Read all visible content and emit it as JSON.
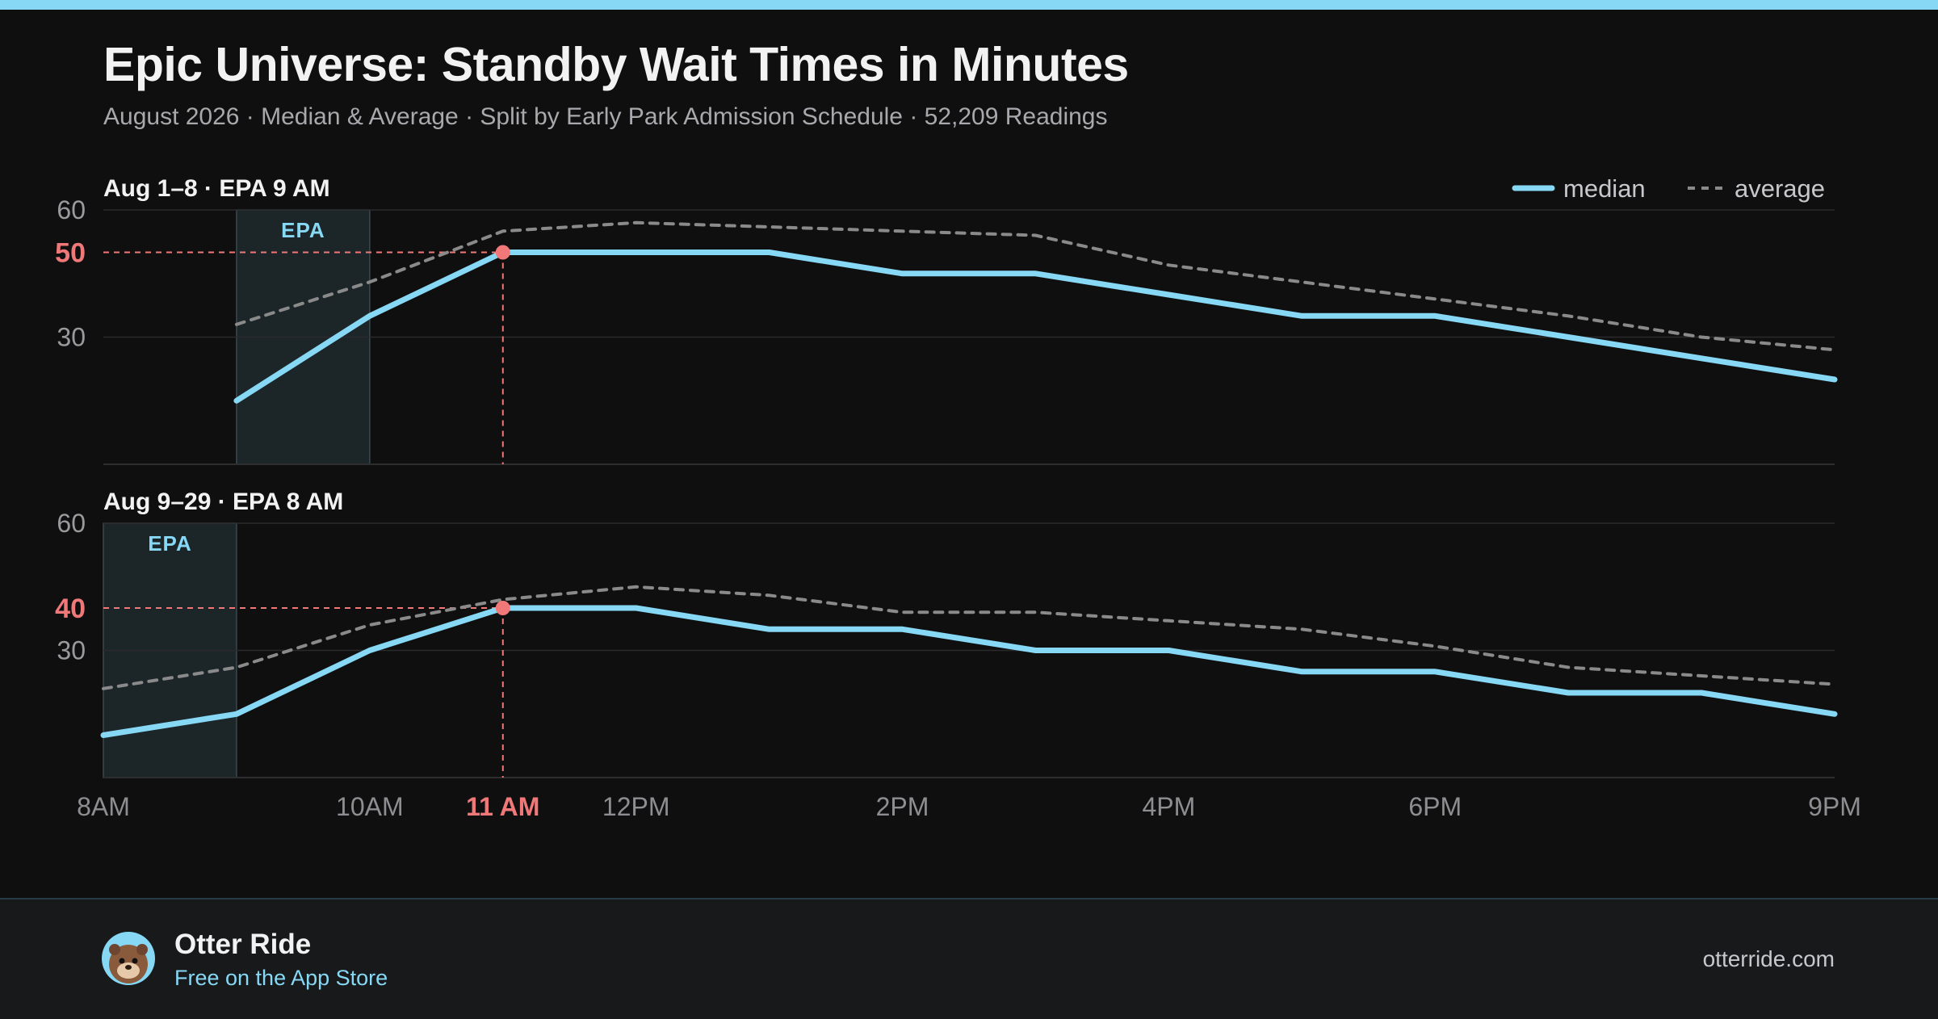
{
  "header": {
    "title": "Epic Universe: Standby Wait Times in Minutes",
    "subtitle": "August 2026 · Median & Average · Split by Early Park Admission Schedule · 52,209 Readings"
  },
  "colors": {
    "median": "#87d8f5",
    "average": "#8a8a8a",
    "highlight": "#f07878",
    "epa_band": "#1c2528",
    "background": "#0f0f10"
  },
  "legend": {
    "median": "median",
    "average": "average",
    "placement": "top-right"
  },
  "chart_data": [
    {
      "type": "line",
      "panel_label": "Aug 1–8 · EPA 9 AM",
      "x": [
        9,
        10,
        11,
        12,
        13,
        14,
        15,
        16,
        17,
        18,
        19,
        20,
        21
      ],
      "series": [
        {
          "name": "median",
          "values": [
            15,
            35,
            50,
            50,
            50,
            45,
            45,
            40,
            35,
            35,
            30,
            25,
            20
          ]
        },
        {
          "name": "average",
          "values": [
            33,
            43,
            55,
            57,
            56,
            55,
            54,
            47,
            43,
            39,
            35,
            30,
            27
          ]
        }
      ],
      "ylim": [
        0,
        60
      ],
      "y_ticks": [
        "30",
        "60"
      ],
      "highlight": {
        "x": 11,
        "y": 50,
        "y_label": "50"
      },
      "epa_band": {
        "x_start": 9,
        "x_end": 10,
        "label": "EPA"
      }
    },
    {
      "type": "line",
      "panel_label": "Aug 9–29 · EPA 8 AM",
      "x": [
        8,
        9,
        10,
        11,
        12,
        13,
        14,
        15,
        16,
        17,
        18,
        19,
        20,
        21
      ],
      "series": [
        {
          "name": "median",
          "values": [
            10,
            15,
            30,
            40,
            40,
            35,
            35,
            30,
            30,
            25,
            25,
            20,
            20,
            15
          ]
        },
        {
          "name": "average",
          "values": [
            21,
            26,
            36,
            42,
            45,
            43,
            39,
            39,
            37,
            35,
            31,
            26,
            24,
            22
          ]
        }
      ],
      "ylim": [
        0,
        60
      ],
      "y_ticks": [
        "30",
        "60"
      ],
      "highlight": {
        "x": 11,
        "y": 40,
        "y_label": "40"
      },
      "epa_band": {
        "x_start": 8,
        "x_end": 9,
        "label": "EPA"
      }
    }
  ],
  "x_axis": {
    "ticks": [
      {
        "x": 8,
        "label": "8AM"
      },
      {
        "x": 10,
        "label": "10AM"
      },
      {
        "x": 11,
        "label": "11 AM",
        "highlight": true
      },
      {
        "x": 12,
        "label": "12PM"
      },
      {
        "x": 14,
        "label": "2PM"
      },
      {
        "x": 16,
        "label": "4PM"
      },
      {
        "x": 18,
        "label": "6PM"
      },
      {
        "x": 21,
        "label": "9PM"
      }
    ],
    "xlim": [
      8,
      21
    ]
  },
  "footer": {
    "brand_name": "Otter Ride",
    "tagline": "Free on the App Store",
    "site": "otterride.com",
    "avatar_icon": "otter-mascot-icon"
  }
}
